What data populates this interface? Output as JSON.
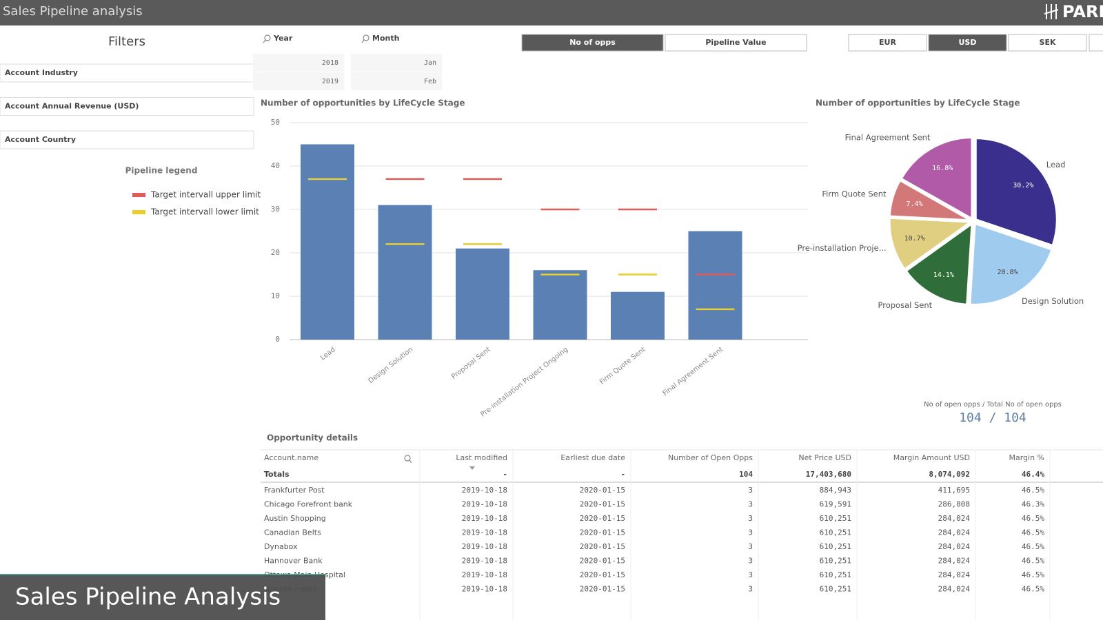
{
  "header": {
    "title": "Sales Pipeline analysis",
    "logo": "PARK"
  },
  "filters": {
    "title": "Filters",
    "items": [
      "Account Industry",
      "Account Annual Revenue (USD)",
      "Account Country"
    ]
  },
  "year_filter": {
    "label": "Year",
    "values": [
      "2018",
      "2019"
    ]
  },
  "month_filter": {
    "label": "Month",
    "values": [
      "Jan",
      "Feb"
    ]
  },
  "measure_buttons": {
    "items": [
      "No of opps",
      "Pipeline Value"
    ],
    "selected": 0
  },
  "currency_buttons": {
    "items": [
      "EUR",
      "USD",
      "SEK"
    ],
    "selected": 1
  },
  "pipeline_legend": {
    "title": "Pipeline legend"
  },
  "chart_data": [
    {
      "type": "bar",
      "title": "Number of opportunities by LifeCycle Stage",
      "categories": [
        "Lead",
        "Design Solution",
        "Proposal Sent",
        "Pre-installation Project Ongoing",
        "Firm Quote Sent",
        "Final Agreement Sent"
      ],
      "values": [
        45,
        31,
        21,
        16,
        11,
        25
      ],
      "color": "#5b80b4",
      "markers": [
        {
          "name": "Target intervall upper limit",
          "color": "#e05a5a",
          "values": [
            null,
            37,
            37,
            30,
            30,
            15
          ]
        },
        {
          "name": "Target intervall lower limit",
          "color": "#e8cf2c",
          "values": [
            37,
            22,
            22,
            15,
            15,
            7
          ]
        }
      ],
      "ylim": [
        0,
        50
      ],
      "yticks": [
        0,
        10,
        20,
        30,
        40,
        50
      ],
      "grid": true
    },
    {
      "type": "pie",
      "title": "Number of opportunities by LifeCycle Stage",
      "categories": [
        "Lead",
        "Design Solution",
        "Proposal Sent",
        "Pre-installation Proje...",
        "Firm Quote Sent",
        "Final Agreement Sent"
      ],
      "values": [
        30.2,
        20.8,
        14.1,
        10.7,
        7.4,
        16.8
      ],
      "value_labels": [
        "30.2%",
        "20.8%",
        "14.1%",
        "10.7%",
        "7.4%",
        "16.8%"
      ],
      "colors": [
        "#3a2f8c",
        "#9ecbee",
        "#2f6d3b",
        "#e0cf80",
        "#d27878",
        "#b05aa8"
      ]
    }
  ],
  "kpi": {
    "label": "No of open opps / Total No of open opps",
    "value": "104 / 104"
  },
  "table": {
    "title": "Opportunity details",
    "columns": [
      "Account.name",
      "Last modified",
      "Earliest due date",
      "Number of Open Opps",
      "Net Price USD",
      "Margin Amount USD",
      "Margin %"
    ],
    "totals": [
      "Totals",
      "-",
      "-",
      "104",
      "17,403,680",
      "8,074,092",
      "46.4%"
    ],
    "rows": [
      [
        "Frankfurter Post",
        "2019-10-18",
        "2020-01-15",
        "3",
        "884,943",
        "411,695",
        "46.5%"
      ],
      [
        "Chicago Forefront bank",
        "2019-10-18",
        "2020-01-15",
        "3",
        "619,591",
        "286,808",
        "46.3%"
      ],
      [
        "Austin Shopping",
        "2019-10-18",
        "2020-01-15",
        "3",
        "610,251",
        "284,024",
        "46.5%"
      ],
      [
        "Canadian Belts",
        "2019-10-18",
        "2020-01-15",
        "3",
        "610,251",
        "284,024",
        "46.5%"
      ],
      [
        "Dynabox",
        "2019-10-18",
        "2020-01-15",
        "3",
        "610,251",
        "284,024",
        "46.5%"
      ],
      [
        "Hannover Bank",
        "2019-10-18",
        "2020-01-15",
        "3",
        "610,251",
        "284,024",
        "46.5%"
      ],
      [
        "Ottawa Main Hospital",
        "2019-10-18",
        "2020-01-15",
        "3",
        "610,251",
        "284,024",
        "46.5%"
      ],
      [
        "Toronto metro",
        "2019-10-18",
        "2020-01-15",
        "3",
        "610,251",
        "284,024",
        "46.5%"
      ]
    ]
  },
  "banner": {
    "title": "Sales Pipeline Analysis"
  }
}
